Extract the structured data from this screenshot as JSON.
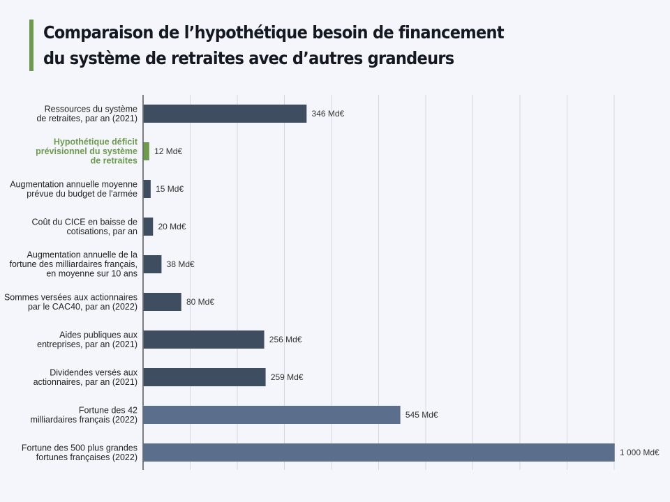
{
  "title": {
    "line1": "Comparaison de l’hypothétique besoin de financement",
    "line2": "du système de retraites avec d’autres grandeurs"
  },
  "colors": {
    "accent": "#6e9a4e",
    "bar_dark": "#3e4d60",
    "bar_light": "#5b6f8c",
    "grid": "#d3d8e0",
    "axis": "#555555"
  },
  "chart_data": {
    "type": "bar",
    "orientation": "horizontal",
    "xlim": [
      0,
      1000
    ],
    "grid": true,
    "unit": "Md€",
    "categories": [
      "Ressources du système de retraites, par an (2021)",
      "Hypothétique déficit prévisionnel du système de retraites",
      "Augmentation annuelle moyenne prévue du budget de l'armée",
      "Coût du CICE en baisse de cotisations, par an",
      "Augmentation annuelle de la fortune des milliardaires français, en moyenne sur 10 ans",
      "Sommes versées aux actionnaires par le CAC40, par an (2022)",
      "Aides publiques aux entreprises, par an (2021)",
      "Dividendes versés aux actionnaires, par an (2021)",
      "Fortune des 42 milliardaires français (2022)",
      "Fortune des 500 plus grandes fortunes françaises (2022)"
    ],
    "category_lines": [
      [
        "Ressources du système",
        "de retraites, par an (2021)"
      ],
      [
        "Hypothétique déficit",
        "prévisionnel du système",
        "de retraites"
      ],
      [
        "Augmentation annuelle moyenne",
        "prévue du budget de l'armée"
      ],
      [
        "Coût du CICE en baisse de",
        "cotisations, par an"
      ],
      [
        "Augmentation annuelle de la",
        "fortune des milliardaires français,",
        "en moyenne sur 10 ans"
      ],
      [
        "Sommes versées aux actionnaires",
        "par le CAC40, par an (2022)"
      ],
      [
        "Aides publiques aux",
        "entreprises, par an (2021)"
      ],
      [
        "Dividendes versés aux",
        "actionnaires, par an (2021)"
      ],
      [
        "Fortune des 42",
        "milliardaires français (2022)"
      ],
      [
        "Fortune des 500 plus grandes",
        "fortunes françaises (2022)"
      ]
    ],
    "values": [
      346,
      12,
      15,
      20,
      38,
      80,
      256,
      259,
      545,
      1000
    ],
    "value_labels": [
      "346 Md€",
      "12 Md€",
      "15 Md€",
      "20 Md€",
      "38 Md€",
      "80 Md€",
      "256 Md€",
      "259 Md€",
      "545 Md€",
      "1 000 Md€"
    ],
    "bar_styles": [
      "dark",
      "accent",
      "dark",
      "dark",
      "dark",
      "dark",
      "dark",
      "dark",
      "light",
      "light"
    ]
  }
}
